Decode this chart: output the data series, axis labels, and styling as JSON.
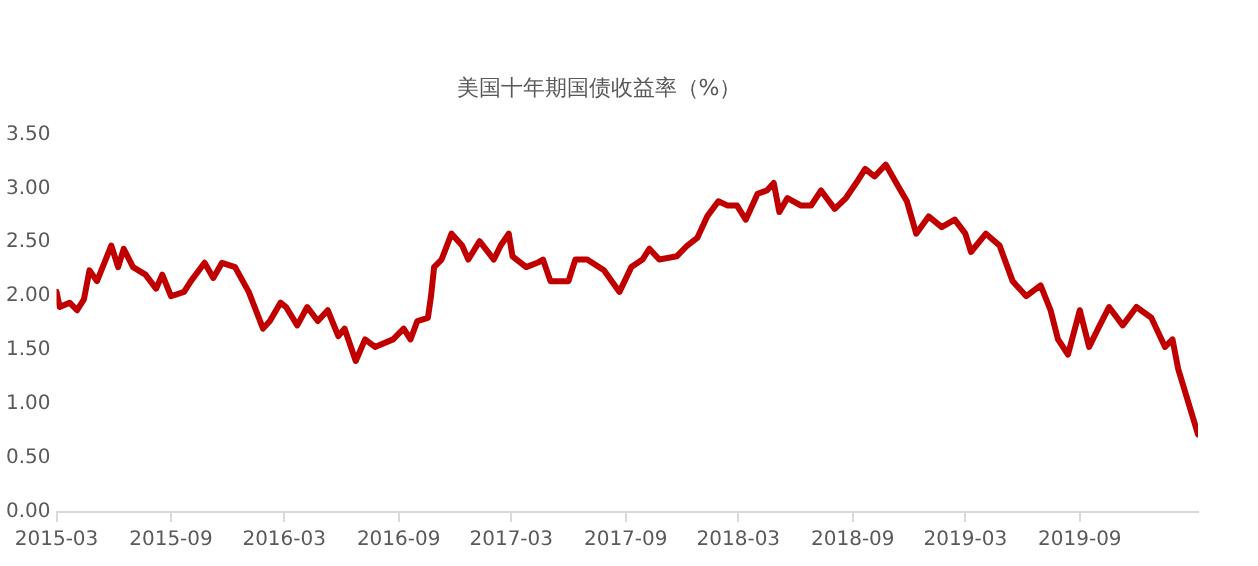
{
  "chart_data": {
    "type": "line",
    "title": "美国十年期国债收益率（%）",
    "legend": false,
    "grid": false,
    "marker": "none",
    "line_style": "solid",
    "xlim": [
      "2015-03-01",
      "2020-03-09"
    ],
    "xticks": [
      "2015-03",
      "2015-09",
      "2016-03",
      "2016-09",
      "2017-03",
      "2017-09",
      "2018-03",
      "2018-09",
      "2019-03",
      "2019-09"
    ],
    "ylim": [
      0,
      3.5
    ],
    "yticks": [
      {
        "value": 0,
        "label": "0.00"
      },
      {
        "value": 0.5,
        "label": "0.50"
      },
      {
        "value": 1,
        "label": "1.00"
      },
      {
        "value": 1.5,
        "label": "1.50"
      },
      {
        "value": 2,
        "label": "2.00"
      },
      {
        "value": 2.5,
        "label": "2.50"
      },
      {
        "value": 3,
        "label": "3.00"
      },
      {
        "value": 3.5,
        "label": "3.50"
      }
    ],
    "x": [
      "2015-03-01",
      "2015-03-06",
      "2015-03-22",
      "2015-04-03",
      "2015-04-14",
      "2015-04-23",
      "2015-05-05",
      "2015-05-19",
      "2015-05-28",
      "2015-06-08",
      "2015-06-17",
      "2015-07-02",
      "2015-07-22",
      "2015-08-08",
      "2015-08-18",
      "2015-09-01",
      "2015-09-22",
      "2015-10-03",
      "2015-10-25",
      "2015-11-08",
      "2015-11-22",
      "2015-12-13",
      "2016-01-04",
      "2016-01-27",
      "2016-02-07",
      "2016-02-24",
      "2016-03-04",
      "2016-03-22",
      "2016-04-07",
      "2016-04-24",
      "2016-05-10",
      "2016-05-27",
      "2016-06-06",
      "2016-06-24",
      "2016-07-09",
      "2016-07-25",
      "2016-08-23",
      "2016-09-09",
      "2016-09-20",
      "2016-10-01",
      "2016-10-18",
      "2016-10-23",
      "2016-10-28",
      "2016-11-09",
      "2016-11-25",
      "2016-12-12",
      "2016-12-22",
      "2017-01-09",
      "2017-02-01",
      "2017-02-12",
      "2017-02-25",
      "2017-03-03",
      "2017-03-25",
      "2017-04-12",
      "2017-04-21",
      "2017-05-03",
      "2017-06-01",
      "2017-06-12",
      "2017-07-01",
      "2017-07-28",
      "2017-08-22",
      "2017-09-10",
      "2017-09-28",
      "2017-10-09",
      "2017-10-25",
      "2017-11-22",
      "2017-12-09",
      "2017-12-25",
      "2018-01-10",
      "2018-01-28",
      "2018-02-12",
      "2018-02-27",
      "2018-03-13",
      "2018-04-01",
      "2018-04-16",
      "2018-04-27",
      "2018-05-06",
      "2018-05-19",
      "2018-06-10",
      "2018-06-26",
      "2018-07-12",
      "2018-08-03",
      "2018-08-21",
      "2018-09-10",
      "2018-09-21",
      "2018-10-06",
      "2018-10-24",
      "2018-11-10",
      "2018-11-27",
      "2018-12-12",
      "2019-01-01",
      "2019-01-22",
      "2019-02-12",
      "2019-03-01",
      "2019-03-10",
      "2019-04-03",
      "2019-04-25",
      "2019-05-16",
      "2019-06-07",
      "2019-06-30",
      "2019-07-16",
      "2019-07-28",
      "2019-08-13",
      "2019-09-01",
      "2019-09-16",
      "2019-10-03",
      "2019-10-18",
      "2019-11-09",
      "2019-12-01",
      "2019-12-25",
      "2020-01-16",
      "2020-01-28",
      "2020-02-06",
      "2020-03-09"
    ],
    "series": [
      {
        "color": "#c00000",
        "values": [
          2.04,
          1.9,
          1.94,
          1.87,
          1.97,
          2.24,
          2.14,
          2.34,
          2.47,
          2.27,
          2.44,
          2.27,
          2.2,
          2.07,
          2.2,
          2.0,
          2.04,
          2.14,
          2.31,
          2.17,
          2.31,
          2.27,
          2.04,
          1.7,
          1.77,
          1.94,
          1.9,
          1.73,
          1.9,
          1.77,
          1.87,
          1.63,
          1.7,
          1.4,
          1.6,
          1.53,
          1.6,
          1.7,
          1.6,
          1.77,
          1.8,
          2.0,
          2.27,
          2.34,
          2.58,
          2.47,
          2.34,
          2.51,
          2.34,
          2.47,
          2.58,
          2.37,
          2.27,
          2.31,
          2.34,
          2.14,
          2.14,
          2.34,
          2.34,
          2.24,
          2.04,
          2.27,
          2.34,
          2.44,
          2.34,
          2.37,
          2.47,
          2.54,
          2.74,
          2.88,
          2.84,
          2.84,
          2.71,
          2.95,
          2.98,
          3.05,
          2.78,
          2.91,
          2.84,
          2.84,
          2.98,
          2.81,
          2.91,
          3.08,
          3.18,
          3.11,
          3.22,
          3.05,
          2.88,
          2.58,
          2.74,
          2.64,
          2.71,
          2.58,
          2.41,
          2.58,
          2.47,
          2.14,
          2.0,
          2.1,
          1.87,
          1.6,
          1.46,
          1.87,
          1.53,
          1.73,
          1.9,
          1.73,
          1.9,
          1.8,
          1.53,
          1.6,
          1.33,
          0.72
        ]
      }
    ]
  }
}
